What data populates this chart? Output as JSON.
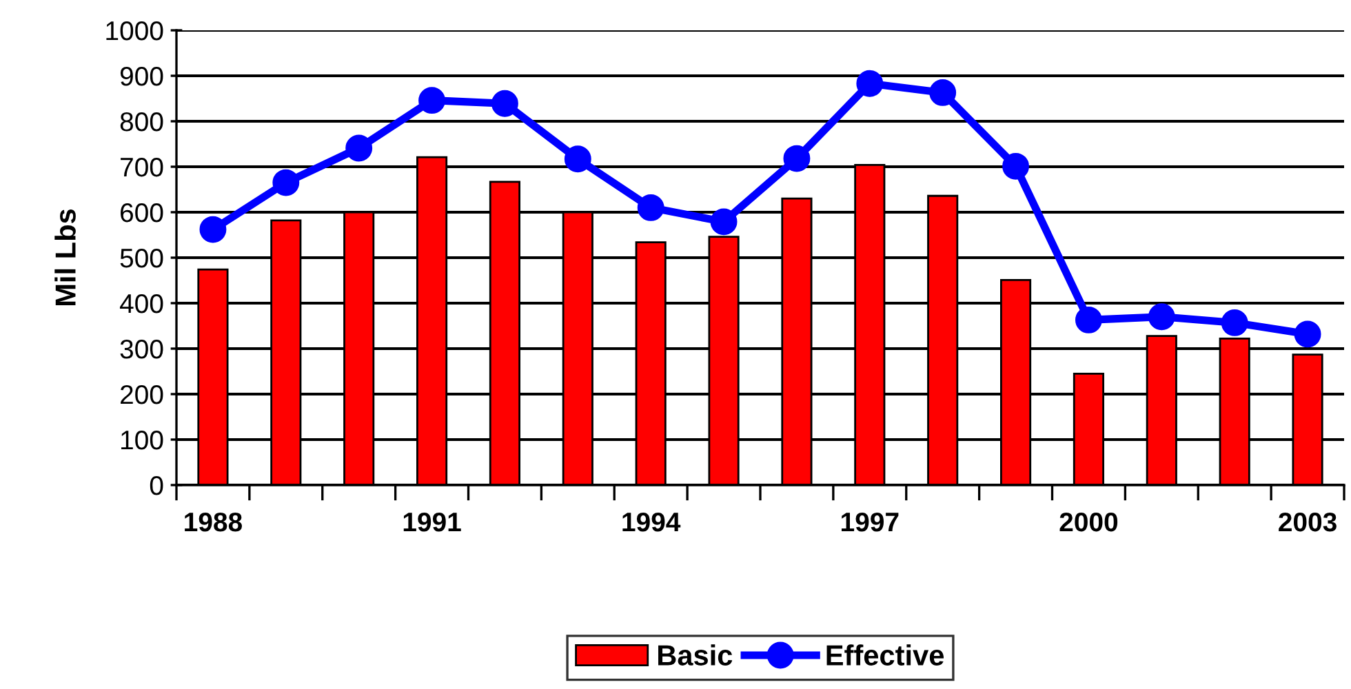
{
  "chart_data": {
    "type": "bar",
    "ylabel": "Mil Lbs",
    "categories": [
      "1988",
      null,
      null,
      "1991",
      null,
      null,
      "1994",
      null,
      null,
      "1997",
      null,
      null,
      "2000",
      null,
      null,
      "2003"
    ],
    "series": [
      {
        "name": "Basic",
        "color": "#ff0000",
        "values": [
          474,
          582,
          600,
          721,
          667,
          600,
          534,
          546,
          630,
          704,
          636,
          451,
          245,
          328,
          322,
          287
        ]
      },
      {
        "name": "Effective",
        "color": "#0000ff",
        "type": "line",
        "marker": "circle",
        "line_style": "solid",
        "values": [
          562,
          665,
          741,
          846,
          839,
          717,
          610,
          579,
          718,
          883,
          863,
          701,
          363,
          370,
          357,
          332
        ]
      }
    ],
    "ylim": [
      0,
      1000
    ],
    "yticks": [
      0,
      100,
      200,
      300,
      400,
      500,
      600,
      700,
      800,
      900,
      1000
    ],
    "grid": "y",
    "legend": "bottom"
  }
}
